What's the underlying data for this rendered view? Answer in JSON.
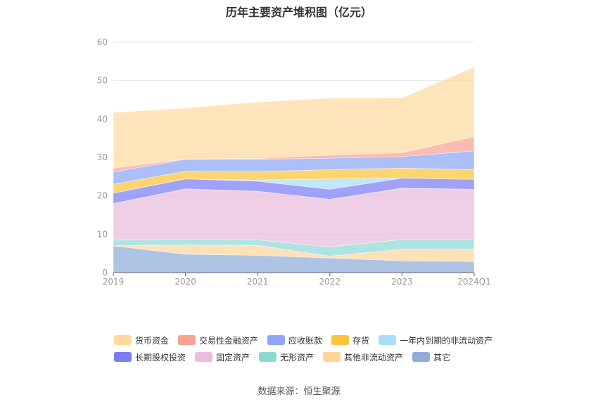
{
  "chart_data": {
    "type": "area",
    "stacked": true,
    "title": "历年主要资产堆积图（亿元）",
    "categories": [
      "2019",
      "2020",
      "2021",
      "2022",
      "2023",
      "2024Q1"
    ],
    "ylim": [
      0,
      60
    ],
    "yticks": [
      0,
      10,
      20,
      30,
      40,
      50,
      60
    ],
    "grid": true,
    "legend_position": "bottom",
    "series": [
      {
        "name": "其它",
        "color": "#8fadd9",
        "values": [
          7.0,
          4.8,
          4.5,
          3.8,
          3.1,
          2.9
        ]
      },
      {
        "name": "其他非流动资产",
        "color": "#fdd59c",
        "values": [
          0.0,
          2.4,
          2.6,
          0.5,
          3.0,
          3.2
        ]
      },
      {
        "name": "无形资产",
        "color": "#8dd9d6",
        "values": [
          1.5,
          1.5,
          1.4,
          2.4,
          2.5,
          2.5
        ]
      },
      {
        "name": "固定资产",
        "color": "#e9bddd",
        "values": [
          9.5,
          13.1,
          12.7,
          12.4,
          13.4,
          13.1
        ]
      },
      {
        "name": "长期股权投资",
        "color": "#7b7df5",
        "values": [
          2.7,
          2.6,
          2.6,
          2.6,
          2.6,
          2.6
        ]
      },
      {
        "name": "一年内到期的非流动资产",
        "color": "#a8def8",
        "values": [
          0.0,
          0.0,
          0.3,
          2.7,
          0.0,
          0.0
        ]
      },
      {
        "name": "存货",
        "color": "#fbc53a",
        "values": [
          2.3,
          2.0,
          2.2,
          2.4,
          2.6,
          2.5
        ]
      },
      {
        "name": "应收账款",
        "color": "#8da6f7",
        "values": [
          3.2,
          3.1,
          3.2,
          3.0,
          3.0,
          4.9
        ]
      },
      {
        "name": "交易性金融资产",
        "color": "#f8a294",
        "values": [
          1.0,
          0.1,
          0.2,
          0.8,
          1.0,
          3.7
        ]
      },
      {
        "name": "货币资金",
        "color": "#fdd9a0",
        "values": [
          14.5,
          13.2,
          14.7,
          14.8,
          14.3,
          18.1
        ]
      }
    ]
  },
  "legend_rows": [
    [
      "货币资金",
      "交易性金融资产",
      "应收账款",
      "存货",
      "一年内到期的非流动资产"
    ],
    [
      "长期股权投资",
      "固定资产",
      "无形资产",
      "其他非流动资产",
      "其它"
    ]
  ],
  "source": "数据来源：恒生聚源"
}
